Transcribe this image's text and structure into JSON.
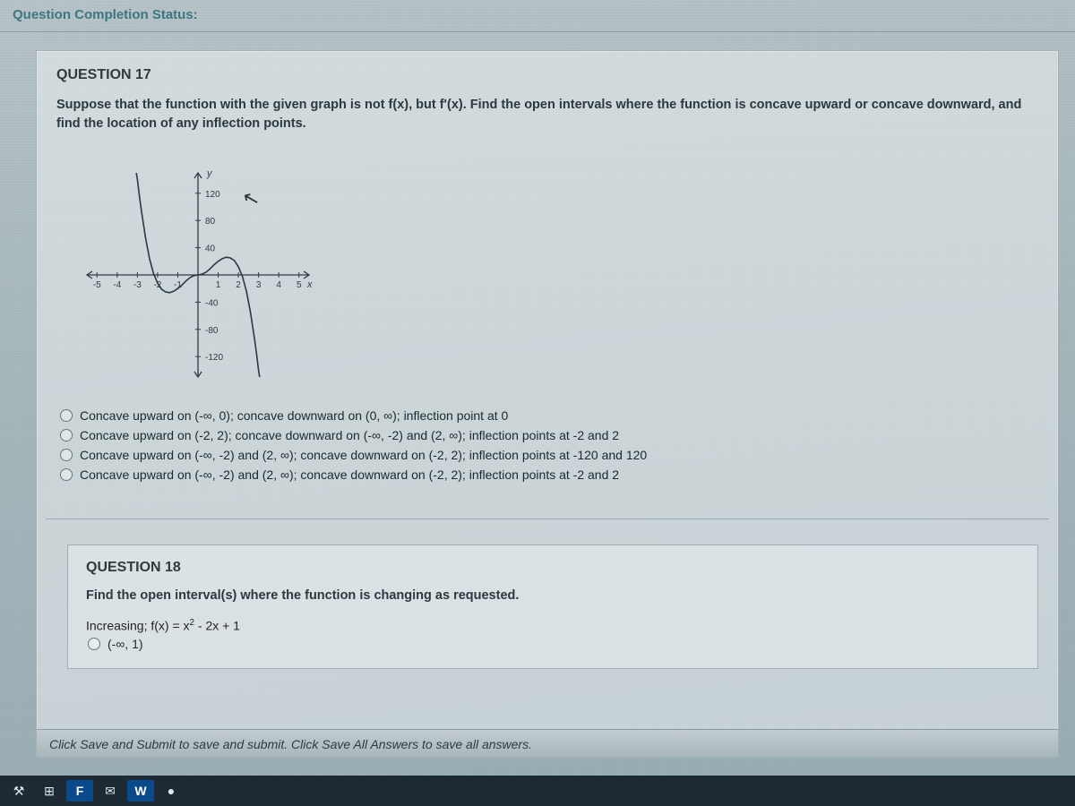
{
  "status_label": "Question Completion Status:",
  "q17": {
    "title": "QUESTION 17",
    "prompt": "Suppose that the function with the given graph is not f(x), but f'(x). Find the open intervals where the function is concave upward or concave downward, and find the location of any inflection points.",
    "options": [
      "Concave upward on (-∞, 0); concave downward on (0, ∞); inflection point at 0",
      "Concave upward on (-2, 2); concave downward on (-∞, -2) and (2, ∞); inflection points at -2 and 2",
      "Concave upward on (-∞, -2) and (2, ∞); concave downward on (-2, 2); inflection points at -120 and 120",
      "Concave upward on (-∞, -2) and (2, ∞); concave downward on (-2, 2); inflection points at -2 and 2"
    ],
    "graph": {
      "type": "line",
      "xlim": [
        -5.5,
        5.5
      ],
      "ylim": [
        -150,
        150
      ],
      "xticks": [
        -5,
        -4,
        -3,
        -2,
        -1,
        1,
        2,
        3,
        4,
        5
      ],
      "yticks": [
        -120,
        -80,
        -40,
        40,
        80,
        120
      ],
      "x_axis_label": "x",
      "y_axis_label": "y",
      "axis_color": "#333844",
      "tick_color": "#333844",
      "label_fontsize": 11,
      "curve_color": "#2a3a44",
      "curve_width": 1.6,
      "points_xy": [
        [
          -3.05,
          150
        ],
        [
          -3.0,
          140
        ],
        [
          -2.9,
          116
        ],
        [
          -2.8,
          94
        ],
        [
          -2.6,
          55
        ],
        [
          -2.4,
          24
        ],
        [
          -2.2,
          2
        ],
        [
          -2.0,
          -12
        ],
        [
          -1.8,
          -21
        ],
        [
          -1.6,
          -25
        ],
        [
          -1.4,
          -26
        ],
        [
          -1.2,
          -24
        ],
        [
          -1.0,
          -20
        ],
        [
          -0.8,
          -15
        ],
        [
          -0.6,
          -9
        ],
        [
          -0.4,
          -4
        ],
        [
          -0.2,
          -1
        ],
        [
          0,
          0
        ],
        [
          0.2,
          1
        ],
        [
          0.4,
          4
        ],
        [
          0.6,
          9
        ],
        [
          0.8,
          15
        ],
        [
          1.0,
          20
        ],
        [
          1.2,
          24
        ],
        [
          1.4,
          26
        ],
        [
          1.6,
          25
        ],
        [
          1.8,
          21
        ],
        [
          2.0,
          12
        ],
        [
          2.2,
          -2
        ],
        [
          2.4,
          -24
        ],
        [
          2.6,
          -55
        ],
        [
          2.8,
          -94
        ],
        [
          2.9,
          -116
        ],
        [
          3.0,
          -140
        ],
        [
          3.05,
          -150
        ]
      ]
    }
  },
  "q18": {
    "title": "QUESTION 18",
    "prompt": "Find the open interval(s) where the function is changing as requested.",
    "formula_prefix": "Increasing; f(x) = x",
    "formula_exp": "2",
    "formula_suffix": " - 2x + 1",
    "option0": "(-∞, 1)"
  },
  "save_hint": "Click Save and Submit to save and submit. Click Save All Answers to save all answers.",
  "taskbar": {
    "items": [
      "⚒",
      "⊞",
      "F",
      "✉",
      "W",
      "●"
    ]
  },
  "colors": {
    "accent_teal": "#3a7680",
    "panel_border": "#9eaeb4"
  }
}
